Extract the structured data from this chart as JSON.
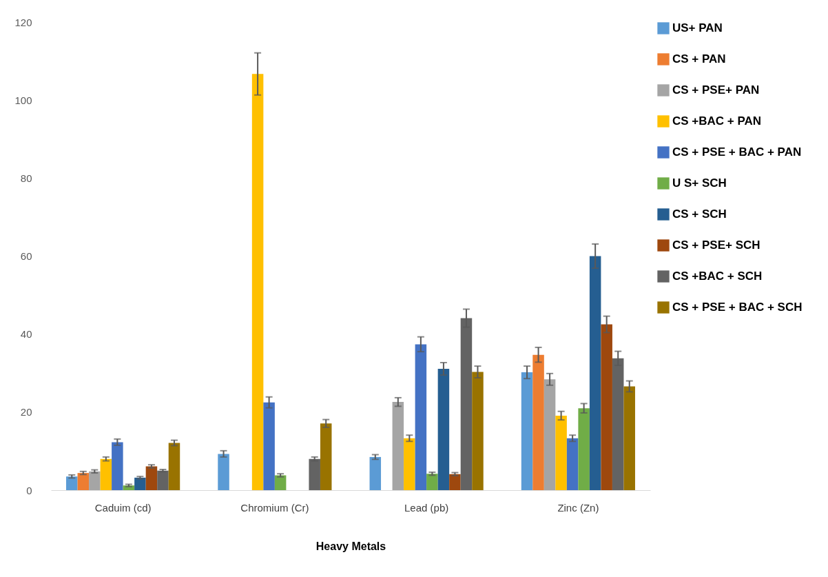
{
  "chart_data": {
    "type": "bar",
    "xlabel": "Heavy Metals",
    "categories": [
      "Caduim (cd)",
      "Chromium (Cr)",
      "Lead (pb)",
      "Zinc (Zn)"
    ],
    "ylim": [
      0,
      120
    ],
    "yticks": [
      0,
      20,
      40,
      60,
      80,
      100,
      120
    ],
    "grid": false,
    "legend": "right",
    "series": [
      {
        "name": "US+ PAN",
        "color": "#5b9bd5",
        "values": [
          3.5,
          9.3,
          8.5,
          30.2
        ],
        "errors": [
          0.4,
          0.8,
          0.6,
          1.6
        ]
      },
      {
        "name": "CS + PAN",
        "color": "#ed7d31",
        "values": [
          4.4,
          0,
          0,
          34.7
        ],
        "errors": [
          0.4,
          null,
          null,
          1.9
        ]
      },
      {
        "name": "CS + PSE+ PAN",
        "color": "#a5a5a5",
        "values": [
          4.8,
          0,
          22.6,
          28.4
        ],
        "errors": [
          0.4,
          null,
          1.1,
          1.5
        ]
      },
      {
        "name": "CS +BAC + PAN",
        "color": "#ffc000",
        "values": [
          8.0,
          106.7,
          13.3,
          19.1
        ],
        "errors": [
          0.5,
          5.4,
          0.8,
          1.1
        ]
      },
      {
        "name": "CS + PSE + BAC + PAN",
        "color": "#4472c4",
        "values": [
          12.3,
          22.5,
          37.4,
          13.3
        ],
        "errors": [
          0.8,
          1.4,
          1.9,
          0.8
        ]
      },
      {
        "name": "U S+ SCH",
        "color": "#70ad47",
        "values": [
          1.2,
          3.8,
          4.2,
          21.0
        ],
        "errors": [
          0.3,
          0.4,
          0.4,
          1.2
        ]
      },
      {
        "name": "CS + SCH",
        "color": "#255e91",
        "values": [
          3.2,
          0,
          31.1,
          60.0
        ],
        "errors": [
          0.3,
          null,
          1.6,
          3.1
        ]
      },
      {
        "name": "CS + PSE+ SCH",
        "color": "#9e480e",
        "values": [
          6.1,
          0,
          4.1,
          42.5
        ],
        "errors": [
          0.4,
          null,
          0.4,
          2.1
        ]
      },
      {
        "name": "CS +BAC + SCH",
        "color": "#636363",
        "values": [
          5.0,
          8.0,
          44.1,
          33.8
        ],
        "errors": [
          0.3,
          0.5,
          2.3,
          1.8
        ]
      },
      {
        "name": "CS + PSE + BAC + SCH",
        "color": "#997300",
        "values": [
          12.1,
          17.1,
          30.3,
          26.6
        ],
        "errors": [
          0.7,
          1.0,
          1.5,
          1.4
        ]
      }
    ]
  }
}
